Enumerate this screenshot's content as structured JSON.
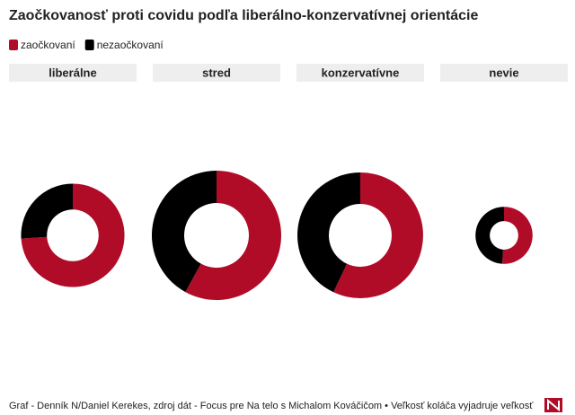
{
  "chart_data": {
    "type": "donut",
    "title": "Zaočkovanosť proti covidu podľa liberálno-konzervatívnej orientácie",
    "categories": [
      "liberálne",
      "stred",
      "konzervatívne",
      "nevie"
    ],
    "series": [
      {
        "name": "zaočkovaní",
        "color": "#b00c28",
        "values": [
          74,
          58,
          57,
          51
        ]
      },
      {
        "name": "nezaočkovaní",
        "color": "#000000",
        "values": [
          26,
          42,
          43,
          49
        ]
      }
    ],
    "sizes": [
      23,
      36,
      34,
      7
    ],
    "source": "Graf - Denník N/Daniel Kerekes, zdroj dát - Focus pre Na telo s Michalom Kováčičom • Veľkosť koláča vyjadruje veľkosť"
  }
}
